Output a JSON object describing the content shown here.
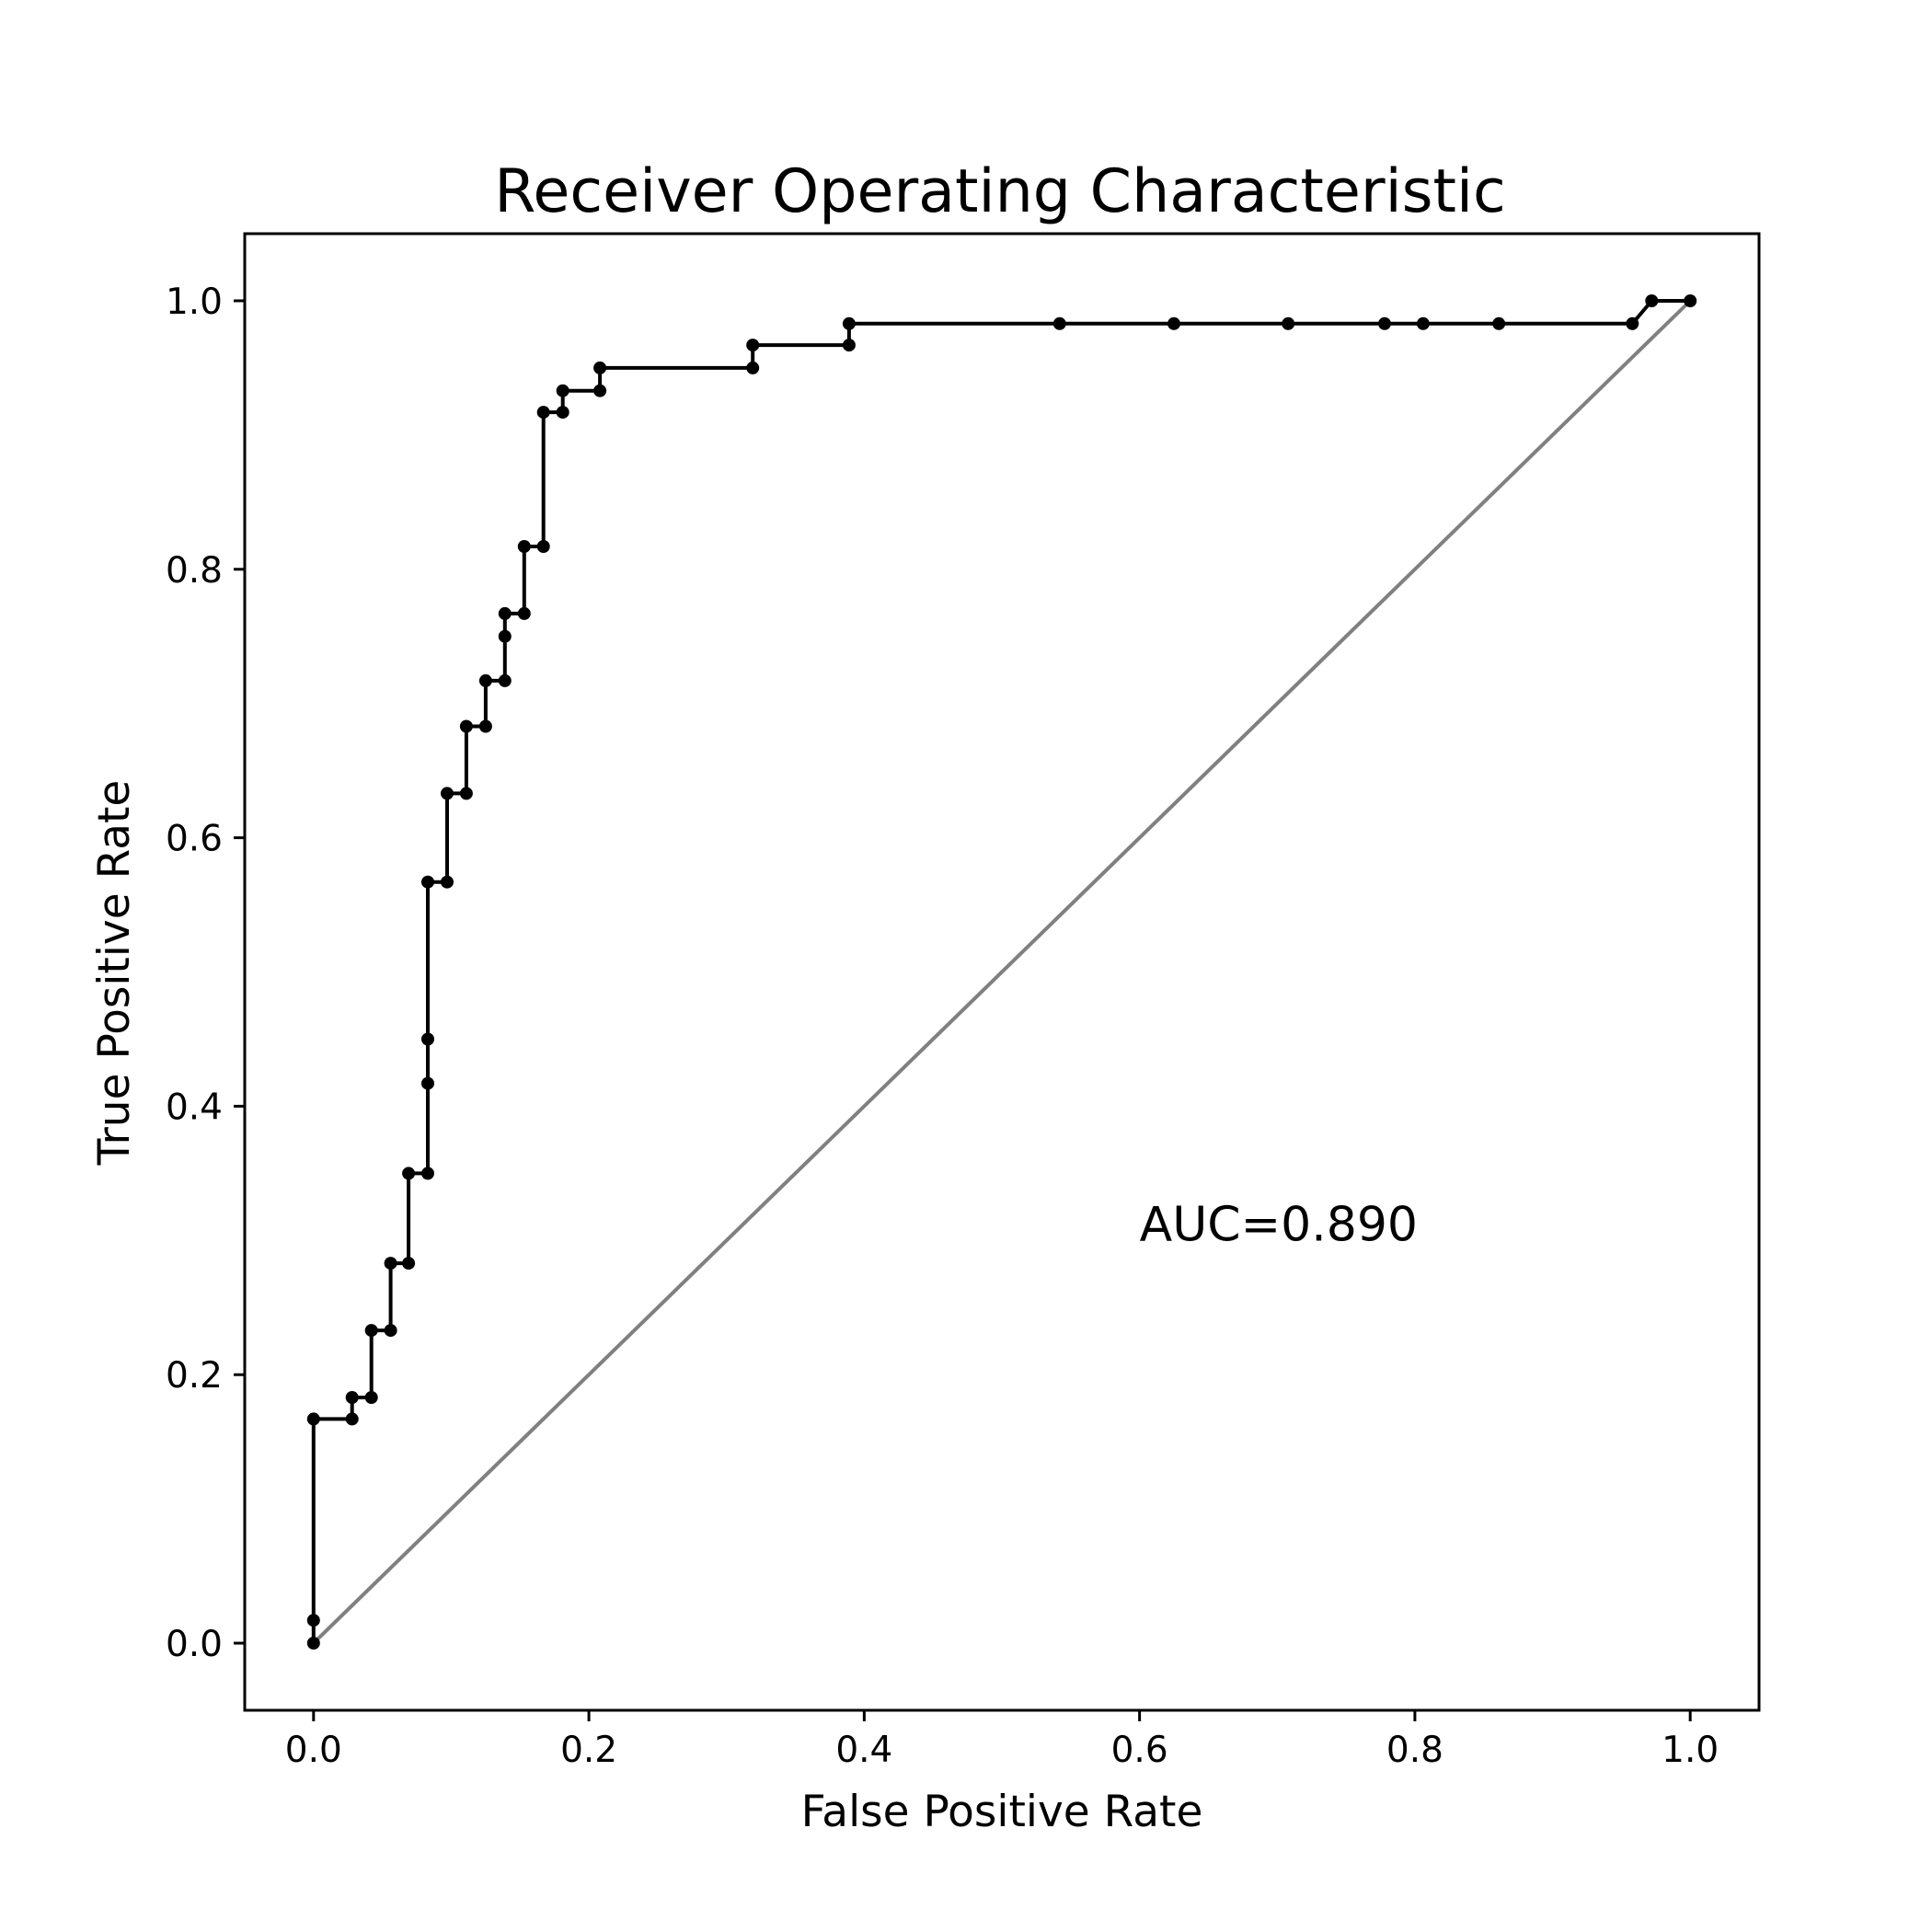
{
  "chart_data": {
    "type": "line",
    "title": "Receiver Operating Characteristic",
    "xlabel": "False Positive Rate",
    "ylabel": "True Positive Rate",
    "xlim": [
      -0.05,
      1.05
    ],
    "ylim": [
      -0.05,
      1.05
    ],
    "xticks": [
      "0.0",
      "0.2",
      "0.4",
      "0.6",
      "0.8",
      "1.0"
    ],
    "yticks": [
      "0.0",
      "0.2",
      "0.4",
      "0.6",
      "0.8",
      "1.0"
    ],
    "grid": false,
    "annotation": {
      "text": "AUC=0.890",
      "x": 0.6,
      "y": 0.3
    },
    "series": [
      {
        "color": "#000000",
        "marker": "circle",
        "x": [
          0.0,
          0.0,
          0.0,
          0.028,
          0.028,
          0.042,
          0.042,
          0.056,
          0.056,
          0.069,
          0.069,
          0.083,
          0.083,
          0.083,
          0.083,
          0.097,
          0.097,
          0.111,
          0.111,
          0.125,
          0.125,
          0.139,
          0.139,
          0.139,
          0.153,
          0.153,
          0.167,
          0.167,
          0.181,
          0.181,
          0.208,
          0.208,
          0.319,
          0.319,
          0.389,
          0.389,
          0.542,
          0.625,
          0.708,
          0.778,
          0.806,
          0.861,
          0.958,
          0.972,
          1.0
        ],
        "y": [
          0.0,
          0.017,
          0.167,
          0.167,
          0.183,
          0.183,
          0.233,
          0.233,
          0.283,
          0.283,
          0.35,
          0.35,
          0.417,
          0.45,
          0.567,
          0.567,
          0.633,
          0.633,
          0.683,
          0.683,
          0.717,
          0.717,
          0.75,
          0.767,
          0.767,
          0.817,
          0.817,
          0.917,
          0.917,
          0.933,
          0.933,
          0.95,
          0.95,
          0.967,
          0.967,
          0.983,
          0.983,
          0.983,
          0.983,
          0.983,
          0.983,
          0.983,
          0.983,
          1.0,
          1.0
        ]
      },
      {
        "color": "#808080",
        "marker": "none",
        "x": [
          0.0,
          1.0
        ],
        "y": [
          0.0,
          1.0
        ]
      }
    ]
  }
}
